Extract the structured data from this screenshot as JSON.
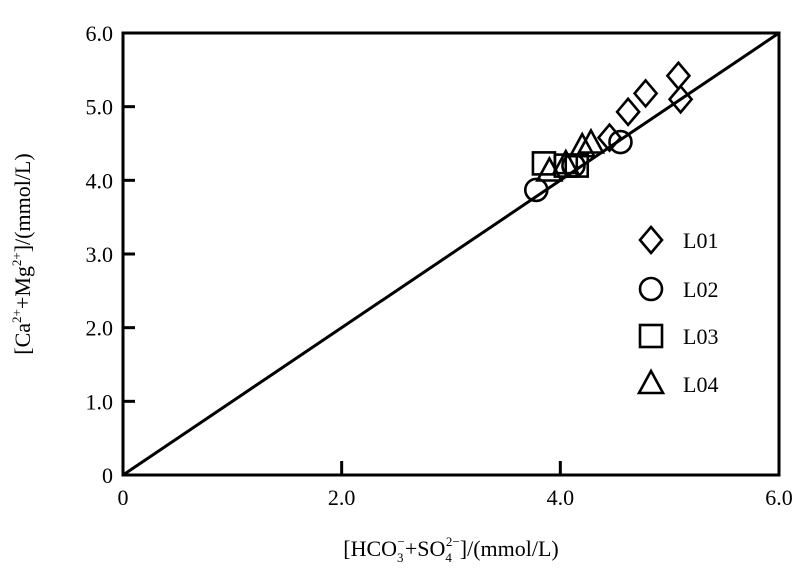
{
  "chart_data": {
    "type": "scatter",
    "xlabel": {
      "pre": "[HCO",
      "sub1": "3",
      "sup1": "−",
      "mid": "+SO",
      "sub2": "4",
      "sup2": "2−",
      "post": "]/(mmol/L)"
    },
    "ylabel": {
      "pre": "[Ca",
      "sup1": "2+",
      "mid": "+Mg",
      "sup2": "2+",
      "post": "]/(mmol/L)"
    },
    "xlim": [
      0,
      6
    ],
    "ylim": [
      0,
      6
    ],
    "x_ticks": [
      {
        "value": 0,
        "label": "0"
      },
      {
        "value": 2,
        "label": "2.0"
      },
      {
        "value": 4,
        "label": "4.0"
      },
      {
        "value": 6,
        "label": "6.0"
      }
    ],
    "y_ticks": [
      {
        "value": 0,
        "label": "0"
      },
      {
        "value": 1,
        "label": "1.0"
      },
      {
        "value": 2,
        "label": "2.0"
      },
      {
        "value": 3,
        "label": "3.0"
      },
      {
        "value": 4,
        "label": "4.0"
      },
      {
        "value": 5,
        "label": "5.0"
      },
      {
        "value": 6,
        "label": "6.0"
      }
    ],
    "reference_line": {
      "from": [
        0,
        0
      ],
      "to": [
        6,
        6
      ]
    },
    "legend_position": "right",
    "series": [
      {
        "name": "L01",
        "marker": "diamond",
        "points": [
          [
            4.45,
            4.58
          ],
          [
            4.62,
            4.93
          ],
          [
            4.78,
            5.18
          ],
          [
            5.08,
            5.42
          ],
          [
            5.1,
            5.1
          ]
        ]
      },
      {
        "name": "L02",
        "marker": "circle",
        "points": [
          [
            3.78,
            3.87
          ],
          [
            4.12,
            4.2
          ],
          [
            4.55,
            4.52
          ]
        ]
      },
      {
        "name": "L03",
        "marker": "square",
        "points": [
          [
            3.85,
            4.23
          ],
          [
            4.05,
            4.2
          ],
          [
            4.15,
            4.2
          ]
        ]
      },
      {
        "name": "L04",
        "marker": "triangle",
        "points": [
          [
            3.9,
            4.12
          ],
          [
            4.05,
            4.22
          ],
          [
            4.2,
            4.45
          ],
          [
            4.28,
            4.5
          ]
        ]
      }
    ]
  }
}
